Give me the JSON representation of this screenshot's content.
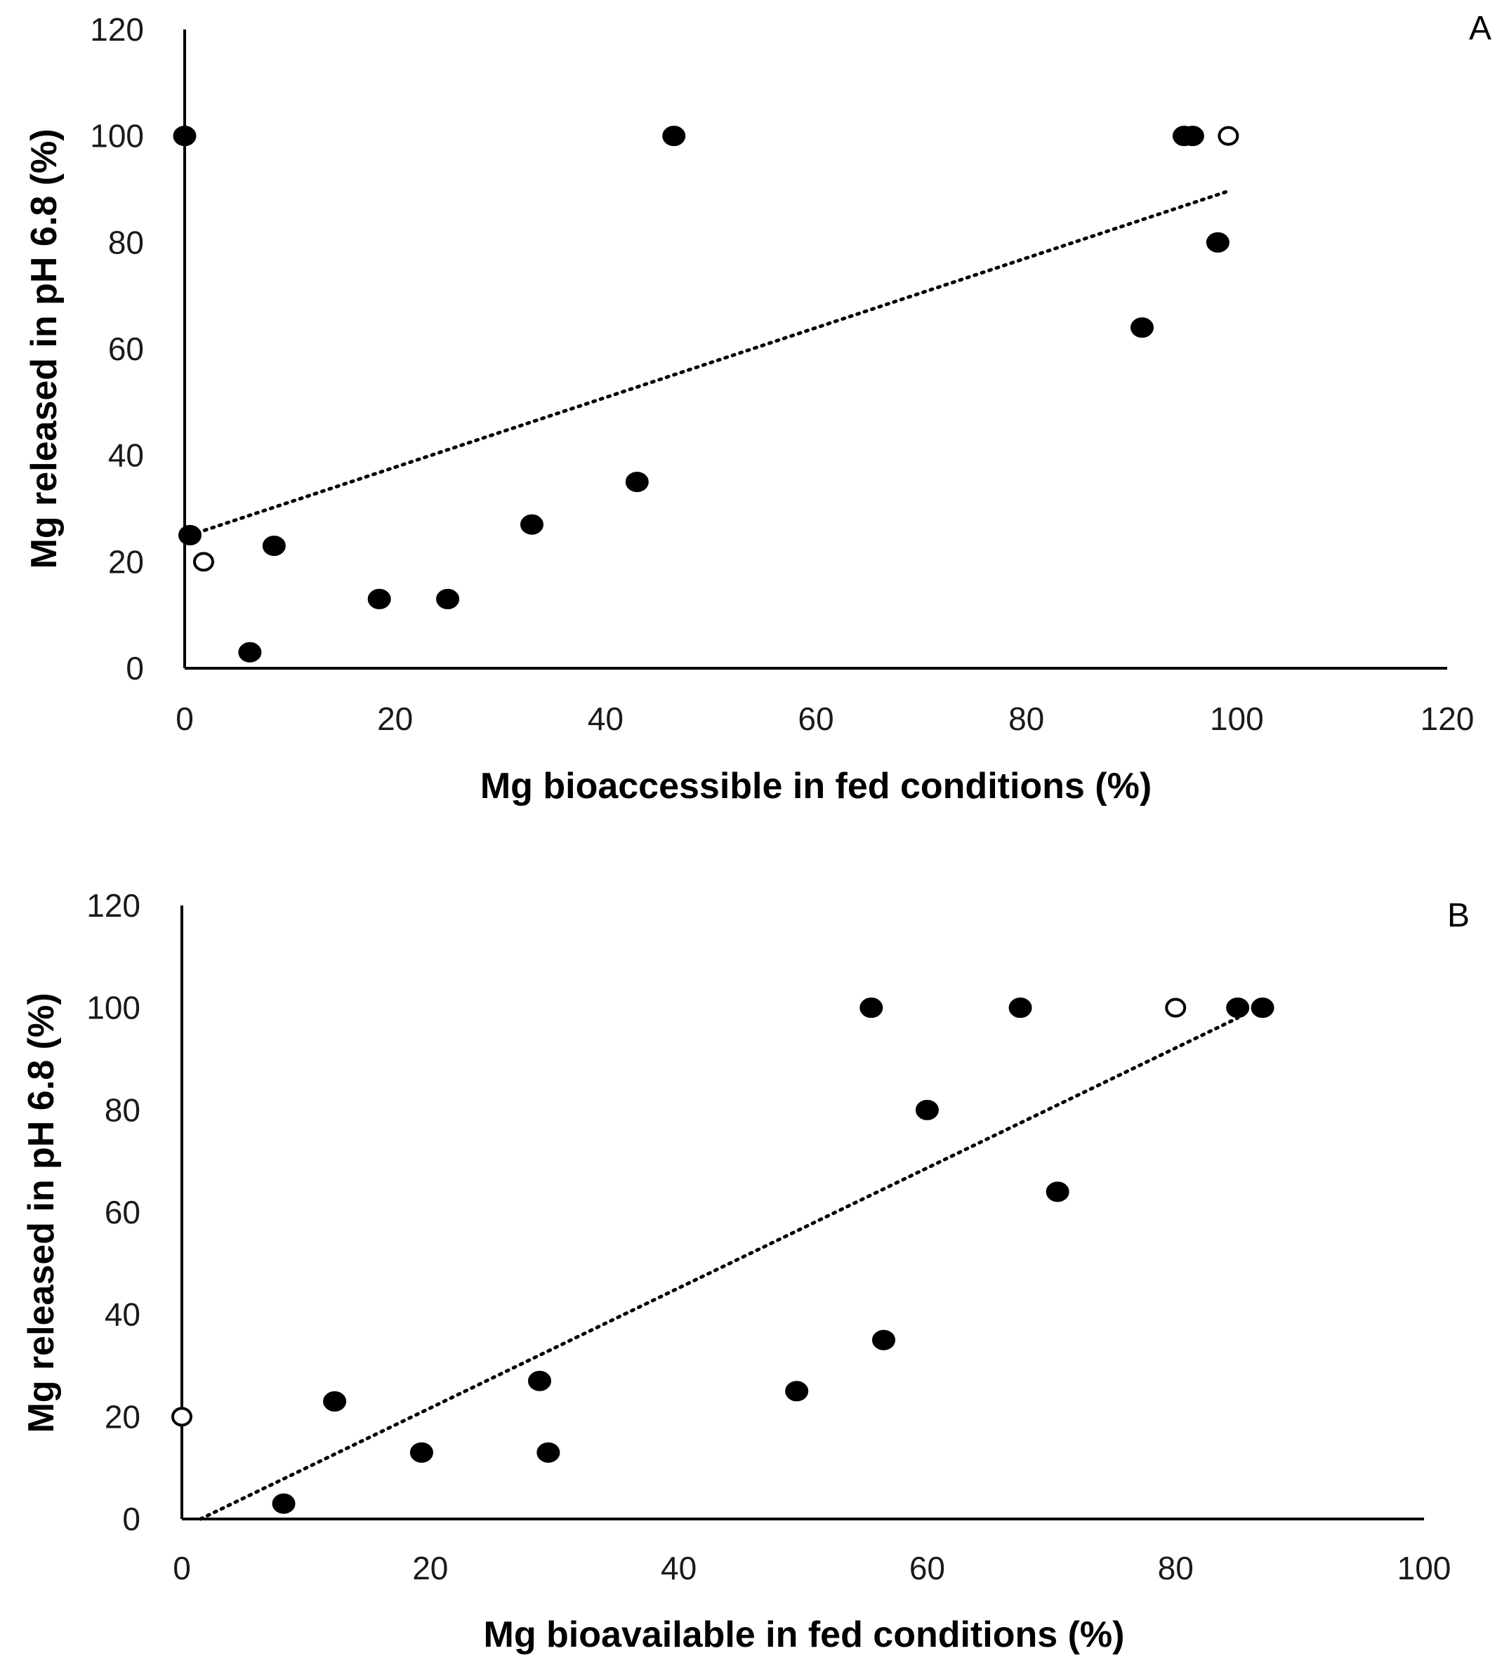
{
  "chart_data": [
    {
      "type": "scatter",
      "panel_label": "A",
      "xlabel": "Mg bioaccessible in fed conditions (%)",
      "ylabel": "Mg released in pH 6.8 (%)",
      "xlim": [
        0,
        120
      ],
      "ylim": [
        0,
        120
      ],
      "xticks": [
        "0",
        "20",
        "40",
        "60",
        "80",
        "100",
        "120"
      ],
      "yticks": [
        "0",
        "20",
        "40",
        "60",
        "80",
        "100",
        "120"
      ],
      "series": [
        {
          "name": "filled",
          "marker": "filled-circle",
          "points": [
            [
              0,
              100
            ],
            [
              46.5,
              100
            ],
            [
              95,
              100
            ],
            [
              95.8,
              100
            ],
            [
              98.2,
              80
            ],
            [
              91,
              64
            ],
            [
              43,
              35
            ],
            [
              33,
              27
            ],
            [
              8.5,
              23
            ],
            [
              0.5,
              25
            ],
            [
              25,
              13
            ],
            [
              18.5,
              13
            ],
            [
              6.2,
              3
            ]
          ]
        },
        {
          "name": "open",
          "marker": "open-circle",
          "points": [
            [
              99.2,
              100
            ],
            [
              1.8,
              20
            ]
          ]
        }
      ],
      "trendline": {
        "style": "dotted",
        "from": [
          0.5,
          25
        ],
        "to": [
          99,
          89.5
        ]
      }
    },
    {
      "type": "scatter",
      "panel_label": "B",
      "xlabel": "Mg bioavailable in fed conditions (%)",
      "ylabel": "Mg released in pH 6.8 (%)",
      "xlim": [
        0,
        100
      ],
      "ylim": [
        0,
        120
      ],
      "xticks": [
        "0",
        "20",
        "40",
        "60",
        "80",
        "100"
      ],
      "yticks": [
        "0",
        "20",
        "40",
        "60",
        "80",
        "100",
        "120"
      ],
      "series": [
        {
          "name": "filled",
          "marker": "filled-circle",
          "points": [
            [
              55.5,
              100
            ],
            [
              67.5,
              100
            ],
            [
              85,
              100
            ],
            [
              87,
              100
            ],
            [
              60,
              80
            ],
            [
              70.5,
              64
            ],
            [
              56.5,
              35
            ],
            [
              49.5,
              25
            ],
            [
              28.8,
              27
            ],
            [
              29.5,
              13
            ],
            [
              19.3,
              13
            ],
            [
              12.3,
              23
            ],
            [
              8.2,
              3
            ]
          ]
        },
        {
          "name": "open",
          "marker": "open-circle",
          "points": [
            [
              80,
              100
            ],
            [
              0,
              20
            ]
          ]
        }
      ],
      "trendline": {
        "style": "dotted",
        "from": [
          1.5,
          0
        ],
        "to": [
          85,
          98
        ]
      }
    }
  ]
}
